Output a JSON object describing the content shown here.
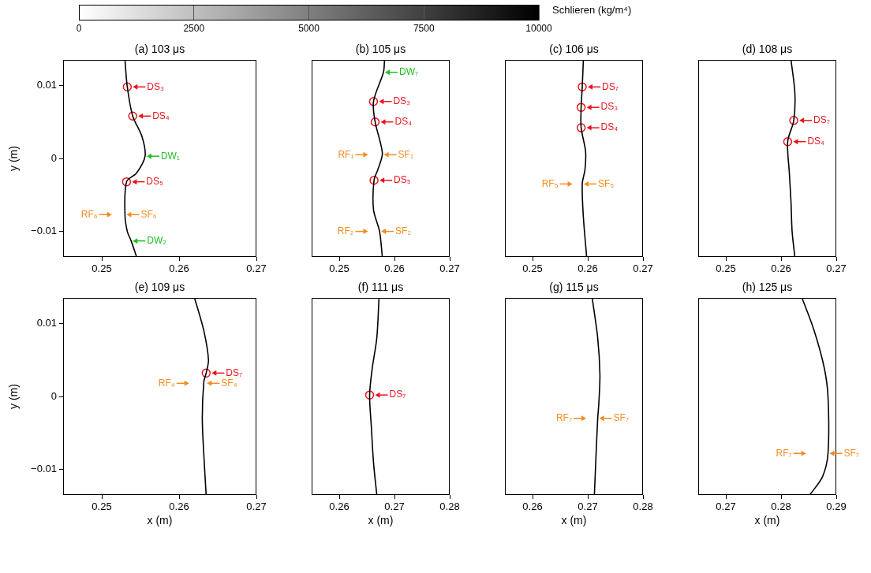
{
  "colorbar": {
    "title": "Schlieren (kg/m⁴)",
    "lim": [
      0,
      10000
    ],
    "ticks": [
      0,
      2500,
      5000,
      7500,
      10000
    ]
  },
  "chart_data": [
    {
      "type": "line",
      "title": "(a) 103 μs",
      "ylabel": "y (m)",
      "xlim": [
        0.245,
        0.27
      ],
      "ylim": [
        -0.0135,
        0.0135
      ],
      "xticks": [
        0.25,
        0.26,
        0.27
      ],
      "yticks": [
        {
          "value": -0.01,
          "label": "−0.01"
        },
        0,
        0.01
      ],
      "series": [
        {
          "color": "#000000",
          "x": [
            0.253,
            0.2533,
            0.254,
            0.2552,
            0.2556,
            0.2545,
            0.2532,
            0.253,
            0.2533,
            0.2538,
            0.2545
          ],
          "values": [
            0.0135,
            0.0098,
            0.0058,
            0.003,
            0.0003,
            -0.002,
            -0.0032,
            -0.0077,
            -0.01,
            -0.0113,
            -0.0135
          ]
        }
      ],
      "annotations": [
        {
          "label": "DS₃",
          "x": 0.2533,
          "y": 0.0098,
          "color": "#e8141e",
          "marker": "circle"
        },
        {
          "label": "DS₄",
          "x": 0.254,
          "y": 0.0058,
          "color": "#e8141e",
          "marker": "circle"
        },
        {
          "label": "DW₁",
          "x": 0.2556,
          "y": 0.0003,
          "color": "#21c021"
        },
        {
          "label": "DS₅",
          "x": 0.2532,
          "y": -0.0032,
          "color": "#e8141e",
          "marker": "circle"
        },
        {
          "label": "RF₆",
          "x": 0.2515,
          "y": -0.0077,
          "color": "#f28c1e"
        },
        {
          "label": "SF₆",
          "x": 0.253,
          "y": -0.0077,
          "color": "#f28c1e"
        },
        {
          "label": "DW₂",
          "x": 0.2538,
          "y": -0.0113,
          "color": "#21c021"
        }
      ]
    },
    {
      "type": "line",
      "title": "(b) 105 μs",
      "tick_labels": "x",
      "xlim": [
        0.245,
        0.27
      ],
      "ylim": [
        -0.0135,
        0.0135
      ],
      "xticks": [
        0.25,
        0.26,
        0.27
      ],
      "series": [
        {
          "color": "#000000",
          "x": [
            0.2582,
            0.258,
            0.2562,
            0.2565,
            0.2575,
            0.2578,
            0.257,
            0.2563,
            0.2562,
            0.2573,
            0.2578
          ],
          "values": [
            0.0135,
            0.0118,
            0.0078,
            0.005,
            0.002,
            0.0005,
            -0.0015,
            -0.003,
            -0.007,
            -0.01,
            -0.0135
          ]
        }
      ],
      "annotations": [
        {
          "label": "DW₇",
          "x": 0.258,
          "y": 0.0118,
          "color": "#21c021"
        },
        {
          "label": "DS₃",
          "x": 0.2562,
          "y": 0.0078,
          "color": "#e8141e",
          "marker": "circle"
        },
        {
          "label": "DS₄",
          "x": 0.2565,
          "y": 0.005,
          "color": "#e8141e",
          "marker": "circle"
        },
        {
          "label": "RF₁",
          "x": 0.2555,
          "y": 0.0005,
          "color": "#f28c1e"
        },
        {
          "label": "SF₁",
          "x": 0.2578,
          "y": 0.0005,
          "color": "#f28c1e"
        },
        {
          "label": "DS₅",
          "x": 0.2563,
          "y": -0.003,
          "color": "#e8141e",
          "marker": "circle"
        },
        {
          "label": "RF₂",
          "x": 0.2555,
          "y": -0.01,
          "color": "#f28c1e"
        },
        {
          "label": "SF₂",
          "x": 0.2573,
          "y": -0.01,
          "color": "#f28c1e"
        }
      ]
    },
    {
      "type": "line",
      "title": "(c) 106 μs",
      "tick_labels": "x",
      "xlim": [
        0.245,
        0.27
      ],
      "ylim": [
        -0.0135,
        0.0135
      ],
      "xticks": [
        0.25,
        0.26,
        0.27
      ],
      "series": [
        {
          "color": "#000000",
          "x": [
            0.2592,
            0.259,
            0.2588,
            0.2588,
            0.2596,
            0.2595,
            0.259,
            0.2592,
            0.2598
          ],
          "values": [
            0.0135,
            0.0098,
            0.007,
            0.0042,
            0.001,
            -0.0015,
            -0.0035,
            -0.008,
            -0.0135
          ]
        }
      ],
      "annotations": [
        {
          "label": "DS₇",
          "x": 0.259,
          "y": 0.0098,
          "color": "#e8141e",
          "marker": "circle"
        },
        {
          "label": "DS₃",
          "x": 0.2588,
          "y": 0.007,
          "color": "#e8141e",
          "marker": "circle"
        },
        {
          "label": "DS₄",
          "x": 0.2588,
          "y": 0.0042,
          "color": "#e8141e",
          "marker": "circle"
        },
        {
          "label": "RF₅",
          "x": 0.2575,
          "y": -0.0035,
          "color": "#f28c1e"
        },
        {
          "label": "SF₅",
          "x": 0.259,
          "y": -0.0035,
          "color": "#f28c1e"
        }
      ]
    },
    {
      "type": "line",
      "title": "(d) 108 μs",
      "tick_labels": "x",
      "xlim": [
        0.245,
        0.27
      ],
      "ylim": [
        -0.0135,
        0.0135
      ],
      "xticks": [
        0.25,
        0.26,
        0.27
      ],
      "series": [
        {
          "color": "#000000",
          "x": [
            0.2618,
            0.2625,
            0.2623,
            0.2612,
            0.2615,
            0.2618,
            0.262,
            0.2625
          ],
          "values": [
            0.0135,
            0.009,
            0.0052,
            0.0023,
            -0.002,
            -0.006,
            -0.01,
            -0.0135
          ]
        }
      ],
      "annotations": [
        {
          "label": "DS₇",
          "x": 0.2623,
          "y": 0.0052,
          "color": "#e8141e",
          "marker": "circle"
        },
        {
          "label": "DS₄",
          "x": 0.2612,
          "y": 0.0023,
          "color": "#e8141e",
          "marker": "circle"
        }
      ]
    },
    {
      "type": "line",
      "title": "(e) 109 μs",
      "xlabel": "x (m)",
      "ylabel": "y (m)",
      "xlim": [
        0.245,
        0.27
      ],
      "ylim": [
        -0.0135,
        0.0135
      ],
      "xticks": [
        0.25,
        0.26,
        0.27
      ],
      "yticks": [
        {
          "value": -0.01,
          "label": "−0.01"
        },
        0,
        0.01
      ],
      "series": [
        {
          "color": "#000000",
          "x": [
            0.262,
            0.2632,
            0.2638,
            0.2635,
            0.2632,
            0.263,
            0.2632,
            0.2635
          ],
          "values": [
            0.0135,
            0.009,
            0.005,
            0.0032,
            0.002,
            -0.003,
            -0.008,
            -0.0135
          ]
        }
      ],
      "annotations": [
        {
          "label": "DS₇",
          "x": 0.2635,
          "y": 0.0032,
          "color": "#e8141e",
          "marker": "circle"
        },
        {
          "label": "RF₄",
          "x": 0.2615,
          "y": 0.0018,
          "color": "#f28c1e"
        },
        {
          "label": "SF₄",
          "x": 0.2634,
          "y": 0.0018,
          "color": "#f28c1e"
        }
      ]
    },
    {
      "type": "line",
      "title": "(f) 111 μs",
      "xlabel": "x (m)",
      "tick_labels": "x",
      "xlim": [
        0.255,
        0.28
      ],
      "ylim": [
        -0.0135,
        0.0135
      ],
      "xticks": [
        0.26,
        0.27,
        0.28
      ],
      "series": [
        {
          "color": "#000000",
          "x": [
            0.2672,
            0.2668,
            0.266,
            0.2655,
            0.2658,
            0.2662,
            0.2668
          ],
          "values": [
            0.0135,
            0.008,
            0.004,
            0.0002,
            -0.004,
            -0.009,
            -0.0135
          ]
        }
      ],
      "annotations": [
        {
          "label": "DS₇",
          "x": 0.2655,
          "y": 0.0002,
          "color": "#e8141e",
          "marker": "circle"
        }
      ]
    },
    {
      "type": "line",
      "title": "(g) 115 μs",
      "xlabel": "x (m)",
      "tick_labels": "x",
      "xlim": [
        0.255,
        0.28
      ],
      "ylim": [
        -0.0135,
        0.0135
      ],
      "xticks": [
        0.26,
        0.27,
        0.28
      ],
      "series": [
        {
          "color": "#000000",
          "x": [
            0.2708,
            0.2718,
            0.2722,
            0.272,
            0.2718,
            0.2715,
            0.2712
          ],
          "values": [
            0.0135,
            0.008,
            0.003,
            -0.001,
            -0.003,
            -0.008,
            -0.0135
          ]
        }
      ],
      "annotations": [
        {
          "label": "RF₇",
          "x": 0.27,
          "y": -0.003,
          "color": "#f28c1e"
        },
        {
          "label": "SF₇",
          "x": 0.2718,
          "y": -0.003,
          "color": "#f28c1e"
        }
      ]
    },
    {
      "type": "line",
      "title": "(h) 125 μs",
      "xlabel": "x (m)",
      "tick_labels": "x",
      "xlim": [
        0.265,
        0.29
      ],
      "ylim": [
        -0.0135,
        0.0135
      ],
      "xticks": [
        0.27,
        0.28,
        0.29
      ],
      "series": [
        {
          "color": "#000000",
          "x": [
            0.2838,
            0.286,
            0.2878,
            0.2885,
            0.2885,
            0.2875,
            0.2852
          ],
          "values": [
            0.0135,
            0.009,
            0.004,
            0.0,
            -0.0078,
            -0.011,
            -0.0135
          ]
        }
      ],
      "annotations": [
        {
          "label": "RF₇",
          "x": 0.2848,
          "y": -0.0078,
          "color": "#f28c1e"
        },
        {
          "label": "SF₇",
          "x": 0.2885,
          "y": -0.0078,
          "color": "#f28c1e"
        }
      ]
    }
  ]
}
